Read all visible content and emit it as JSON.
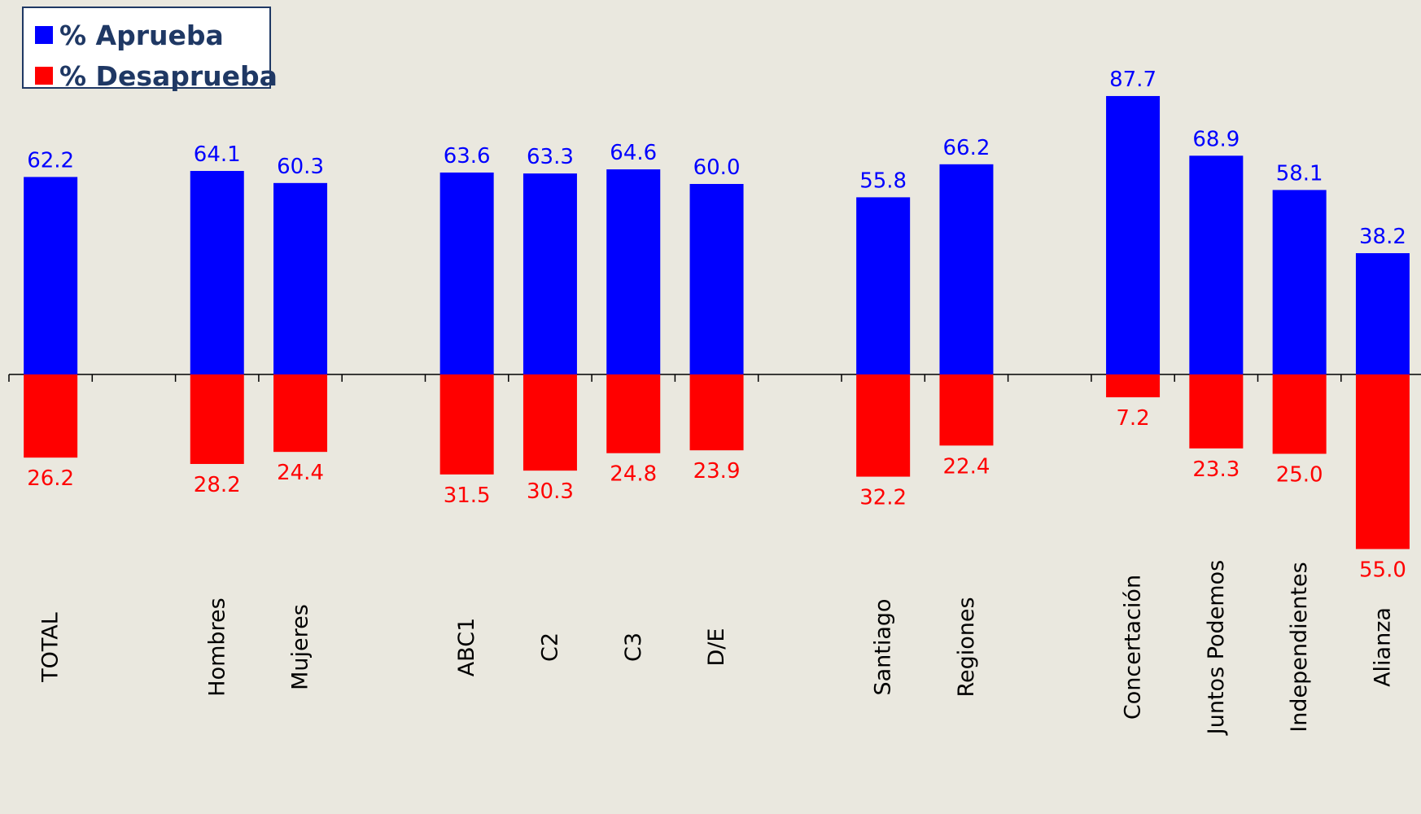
{
  "colors": {
    "aprueba": "#0000ff",
    "desaprueba": "#ff0000",
    "axis": "#000000",
    "background": "#eae8df",
    "legend_text": "#1f3864"
  },
  "legend": {
    "aprueba": "% Aprueba",
    "desaprueba": "% Desaprueba"
  },
  "chart_data": {
    "type": "bar",
    "title": "",
    "xlabel": "",
    "ylabel": "",
    "legend_position": "top-left",
    "grid": false,
    "categories": [
      "TOTAL",
      "",
      "Hombres",
      "Mujeres",
      "",
      "ABC1",
      "C2",
      "C3",
      "D/E",
      "",
      "Santiago",
      "Regiones",
      "",
      "Concertación",
      "Juntos Podemos",
      "Independientes",
      "Alianza"
    ],
    "series": [
      {
        "name": "% Aprueba",
        "values": [
          62.2,
          null,
          64.1,
          60.3,
          null,
          63.6,
          63.3,
          64.6,
          60.0,
          null,
          55.8,
          66.2,
          null,
          87.7,
          68.9,
          58.1,
          38.2
        ]
      },
      {
        "name": "% Desaprueba",
        "values": [
          26.2,
          null,
          28.2,
          24.4,
          null,
          31.5,
          30.3,
          24.8,
          23.9,
          null,
          32.2,
          22.4,
          null,
          7.2,
          23.3,
          25.0,
          55.0
        ]
      }
    ]
  }
}
